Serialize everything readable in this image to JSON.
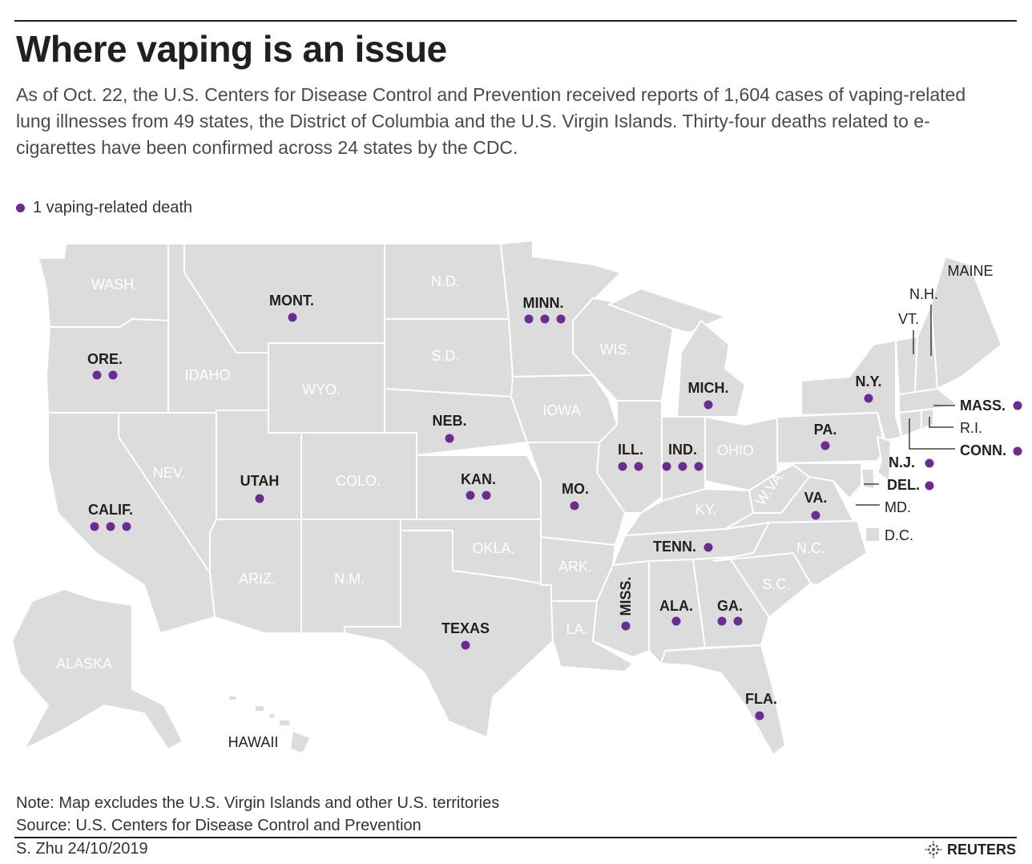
{
  "header": {
    "title": "Where vaping is an issue",
    "subtitle": "As of Oct. 22, the U.S. Centers for Disease Control and Prevention received reports of 1,604 cases of vaping-related lung illnesses from 49 states, the District of Columbia and the U.S. Virgin Islands. Thirty-four deaths related to e-cigarettes have been confirmed across 24 states by the CDC."
  },
  "legend": {
    "label": "1 vaping-related death",
    "color": "#6a2c91"
  },
  "colors": {
    "land": "#dcdcdc",
    "border": "#ffffff",
    "death_dot": "#6a2c91",
    "text": "#231f20"
  },
  "states": {
    "wash": "WASH.",
    "ore": "ORE.",
    "calif": "CALIF.",
    "idaho": "IDAHO",
    "nev": "NEV.",
    "mont": "MONT.",
    "wyo": "WYO.",
    "utah": "UTAH",
    "colo": "COLO.",
    "ariz": "ARIZ.",
    "nm": "N.M.",
    "nd": "N.D.",
    "sd": "S.D.",
    "neb": "NEB.",
    "kan": "KAN.",
    "okla": "OKLA.",
    "texas": "TEXAS",
    "minn": "MINN.",
    "iowa": "IOWA",
    "mo": "MO.",
    "ark": "ARK.",
    "la": "LA.",
    "wis": "WIS.",
    "ill": "ILL.",
    "mich": "MICH.",
    "ind": "IND.",
    "ohio": "OHIO",
    "ky": "KY.",
    "tenn": "TENN.",
    "miss": "MISS.",
    "ala": "ALA.",
    "ga": "GA.",
    "fla": "FLA.",
    "sc": "S.C.",
    "nc": "N.C.",
    "va": "VA.",
    "wva": "W.VA.",
    "pa": "PA.",
    "ny": "N.Y.",
    "nj": "N.J.",
    "del": "DEL.",
    "md": "MD.",
    "dc": "D.C.",
    "conn": "CONN.",
    "ri": "R.I.",
    "mass": "MASS.",
    "vt": "VT.",
    "nh": "N.H.",
    "maine": "MAINE",
    "alaska": "ALASKA",
    "hawaii": "HAWAII"
  },
  "deaths_by_state": {
    "ORE.": 2,
    "CALIF.": 3,
    "MONT.": 1,
    "UTAH": 1,
    "NEB.": 1,
    "KAN.": 2,
    "TEXAS": 1,
    "MINN.": 3,
    "MO.": 1,
    "ILL.": 2,
    "IND.": 3,
    "MICH.": 1,
    "TENN.": 1,
    "MISS.": 1,
    "ALA.": 1,
    "GA.": 2,
    "FLA.": 1,
    "VA.": 1,
    "PA.": 1,
    "N.Y.": 1,
    "N.J.": 1,
    "DEL.": 1,
    "CONN.": 1,
    "MASS.": 1
  },
  "footer": {
    "note": "Note: Map excludes the U.S. Virgin Islands and other U.S. territories",
    "source": "Source: U.S. Centers for Disease Control and Prevention",
    "credit": "S. Zhu 24/10/2019",
    "brand": "REUTERS"
  }
}
